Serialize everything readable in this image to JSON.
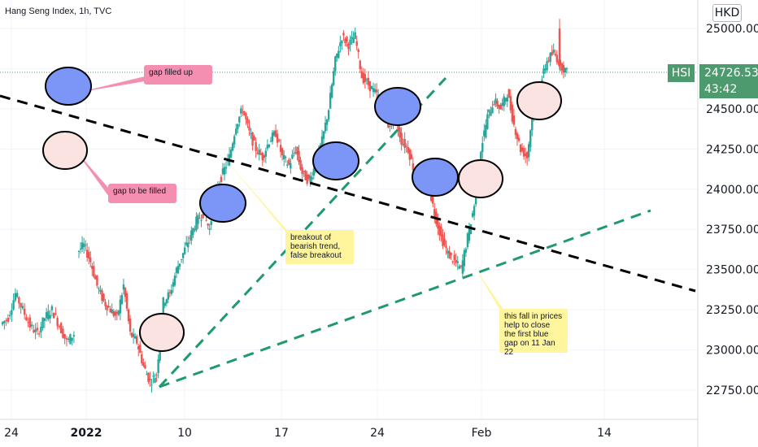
{
  "header": {
    "title": "Hang Seng Index, 1h, TVC",
    "currency": "HKD",
    "symbol": "HSI",
    "last_price": "24726.53",
    "countdown": "43:42"
  },
  "colors": {
    "up": "#26a69a",
    "down": "#ef5350",
    "blue_gap": "#7b96f7",
    "pink_gap": "#fbe3e1",
    "green_trend": "#1e9a6e",
    "bearish_trend": "#000000",
    "badge_green": "#4c9a6e",
    "note_pink": "#f48fb1",
    "note_yellow": "#fff59d"
  },
  "chart_data": {
    "type": "line",
    "title": "Hang Seng Index, 1h, TVC",
    "interval": "1h",
    "source": "TVC",
    "currency": "HKD",
    "ylim": [
      22650,
      25180
    ],
    "yticks": [
      {
        "label": "25000.00",
        "value": 25000
      },
      {
        "label": "24750.00",
        "value": 24750
      },
      {
        "label": "24500.00",
        "value": 24500
      },
      {
        "label": "24250.00",
        "value": 24250
      },
      {
        "label": "24000.00",
        "value": 24000
      },
      {
        "label": "23750.00",
        "value": 23750
      },
      {
        "label": "23500.00",
        "value": 23500
      },
      {
        "label": "23250.00",
        "value": 23250
      },
      {
        "label": "23000.00",
        "value": 23000
      },
      {
        "label": "22750.00",
        "value": 22750
      }
    ],
    "xticks": [
      {
        "label": "24",
        "bold": false
      },
      {
        "label": "2022",
        "bold": true
      },
      {
        "label": "10",
        "bold": false
      },
      {
        "label": "17",
        "bold": false
      },
      {
        "label": "24",
        "bold": false
      },
      {
        "label": "Feb",
        "bold": false
      },
      {
        "label": "14",
        "bold": false
      }
    ],
    "grid": true,
    "last_price": 24726.53,
    "series": [
      {
        "name": "HSI",
        "values": [
          23200,
          23350,
          23250,
          23150,
          23100,
          23200,
          23250,
          23150,
          23050,
          23100,
          23650,
          23550,
          23400,
          23300,
          23250,
          23200,
          23400,
          23100,
          23050,
          22900,
          22800,
          22850,
          23300,
          23350,
          23500,
          23600,
          23700,
          23800,
          23850,
          23750,
          24000,
          24100,
          24200,
          24400,
          24500,
          24350,
          24250,
          24200,
          24300,
          24350,
          24200,
          24150,
          24250,
          24100,
          24050,
          24150,
          24300,
          24500,
          24800,
          24950,
          24900,
          24950,
          24700,
          24650,
          24600,
          24550,
          24400,
          24450,
          24300,
          24250,
          24100,
          24000,
          24050,
          23850,
          23700,
          23600,
          23550,
          23500,
          23700,
          23900,
          24250,
          24450,
          24550,
          24500,
          24600,
          24400,
          24250,
          24200,
          24550,
          24650,
          24800,
          24850,
          24780,
          24726.53
        ]
      },
      {
        "name": "bearish trend",
        "points": [
          {
            "x": 0,
            "y": 24530
          },
          {
            "x": 1,
            "y": 23360
          }
        ]
      },
      {
        "name": "uptrend (steep)",
        "points": [
          {
            "x": 0,
            "y": 22760
          },
          {
            "x": 1,
            "y": 24820
          }
        ]
      },
      {
        "name": "uptrend (shallow)",
        "points": [
          {
            "x": 0,
            "y": 22760
          },
          {
            "x": 1,
            "y": 23850
          }
        ]
      }
    ],
    "annotations": [
      {
        "text": "gap filled up"
      },
      {
        "text": "gap to be filled"
      },
      {
        "text": "breakout of bearish trend, false breakout"
      },
      {
        "text": "this fall in prices help to close the first blue gap on 11 Jan 22"
      }
    ]
  }
}
